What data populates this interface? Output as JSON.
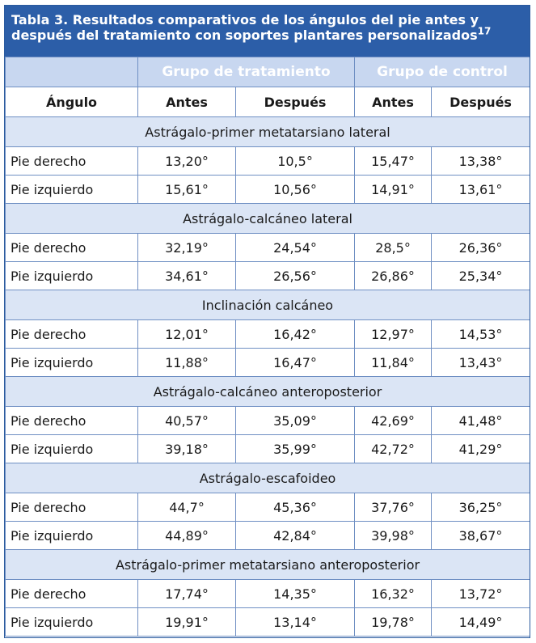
{
  "title": {
    "text": "Tabla 3. Resultados comparativos de los ángulos del pie antes y después del tratamiento con soportes plantares personalizados",
    "ref": "17"
  },
  "header": {
    "group_treatment": "Grupo de tratamiento",
    "group_control": "Grupo de control",
    "col_angle": "Ángulo",
    "col_before_1": "Antes",
    "col_after_1": "Después",
    "col_before_2": "Antes",
    "col_after_2": "Después"
  },
  "sections": [
    {
      "name": "Astrágalo-primer metatarsiano lateral",
      "rows": [
        {
          "label": "Pie derecho",
          "values": [
            "13,20°",
            "10,5°",
            "15,47°",
            "13,38°"
          ]
        },
        {
          "label": "Pie izquierdo",
          "values": [
            "15,61°",
            "10,56°",
            "14,91°",
            "13,61°"
          ]
        }
      ]
    },
    {
      "name": "Astrágalo-calcáneo lateral",
      "rows": [
        {
          "label": "Pie derecho",
          "values": [
            "32,19°",
            "24,54°",
            "28,5°",
            "26,36°"
          ]
        },
        {
          "label": "Pie izquierdo",
          "values": [
            "34,61°",
            "26,56°",
            "26,86°",
            "25,34°"
          ]
        }
      ]
    },
    {
      "name": "Inclinación calcáneo",
      "rows": [
        {
          "label": "Pie derecho",
          "values": [
            "12,01°",
            "16,42°",
            "12,97°",
            "14,53°"
          ]
        },
        {
          "label": "Pie izquierdo",
          "values": [
            "11,88°",
            "16,47°",
            "11,84°",
            "13,43°"
          ]
        }
      ]
    },
    {
      "name": "Astrágalo-calcáneo anteroposterior",
      "rows": [
        {
          "label": "Pie derecho",
          "values": [
            "40,57°",
            "35,09°",
            "42,69°",
            "41,48°"
          ]
        },
        {
          "label": "Pie izquierdo",
          "values": [
            "39,18°",
            "35,99°",
            "42,72°",
            "41,29°"
          ]
        }
      ]
    },
    {
      "name": "Astrágalo-escafoideo",
      "rows": [
        {
          "label": "Pie derecho",
          "values": [
            "44,7°",
            "45,36°",
            "37,76°",
            "36,25°"
          ]
        },
        {
          "label": "Pie izquierdo",
          "values": [
            "44,89°",
            "42,84°",
            "39,98°",
            "38,67°"
          ]
        }
      ]
    },
    {
      "name": "Astrágalo-primer metatarsiano anteroposterior",
      "rows": [
        {
          "label": "Pie derecho",
          "values": [
            "17,74°",
            "14,35°",
            "16,32°",
            "13,72°"
          ]
        },
        {
          "label": "Pie izquierdo",
          "values": [
            "19,91°",
            "13,14°",
            "19,78°",
            "14,49°"
          ]
        }
      ]
    }
  ]
}
